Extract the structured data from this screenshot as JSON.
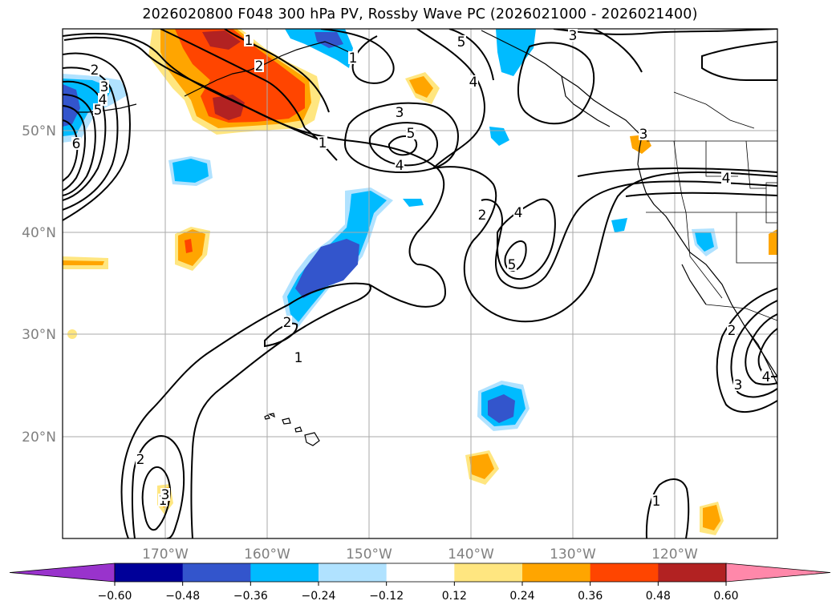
{
  "title": "2026020800 F048 300 hPa PV, Rossby Wave PC (2026021000 - 2026021400)",
  "map": {
    "lat_labels": [
      "50°N",
      "40°N",
      "30°N",
      "20°N"
    ],
    "lon_labels": [
      "170°W",
      "160°W",
      "150°W",
      "140°W",
      "130°W",
      "120°W"
    ],
    "contour_labels": [
      {
        "id": "c1",
        "text": "2"
      },
      {
        "id": "c2",
        "text": "3"
      },
      {
        "id": "c3",
        "text": "4"
      },
      {
        "id": "c4",
        "text": "5"
      },
      {
        "id": "c5",
        "text": "6"
      },
      {
        "id": "c6",
        "text": "1"
      },
      {
        "id": "c7",
        "text": "2"
      },
      {
        "id": "c8",
        "text": "1"
      },
      {
        "id": "c9",
        "text": "5"
      },
      {
        "id": "c10",
        "text": "3"
      },
      {
        "id": "c11",
        "text": "4"
      },
      {
        "id": "c12",
        "text": "3"
      },
      {
        "id": "c13",
        "text": "5"
      },
      {
        "id": "c14",
        "text": "4"
      },
      {
        "id": "c15",
        "text": "1"
      },
      {
        "id": "c16",
        "text": "2"
      },
      {
        "id": "c17",
        "text": "4"
      },
      {
        "id": "c18",
        "text": "5"
      },
      {
        "id": "c19",
        "text": "3"
      },
      {
        "id": "c20",
        "text": "4"
      },
      {
        "id": "c21",
        "text": "2"
      },
      {
        "id": "c22",
        "text": "1"
      },
      {
        "id": "c23",
        "text": "2"
      },
      {
        "id": "c24",
        "text": "1"
      },
      {
        "id": "c25",
        "text": "2"
      },
      {
        "id": "c26",
        "text": "3"
      },
      {
        "id": "c27",
        "text": "3"
      },
      {
        "id": "c28",
        "text": "4"
      },
      {
        "id": "c29",
        "text": "1"
      }
    ]
  },
  "colorbar": {
    "tick_labels": [
      "−0.60",
      "−0.48",
      "−0.36",
      "−0.24",
      "−0.12",
      "0.12",
      "0.24",
      "0.36",
      "0.48",
      "0.60"
    ],
    "colors": [
      "#9933cc",
      "#000099",
      "#3355cc",
      "#00bbff",
      "#b0e2ff",
      "#ffffff",
      "#ffe680",
      "#ffa500",
      "#ff4500",
      "#b22222",
      "#ff88aa"
    ]
  }
}
